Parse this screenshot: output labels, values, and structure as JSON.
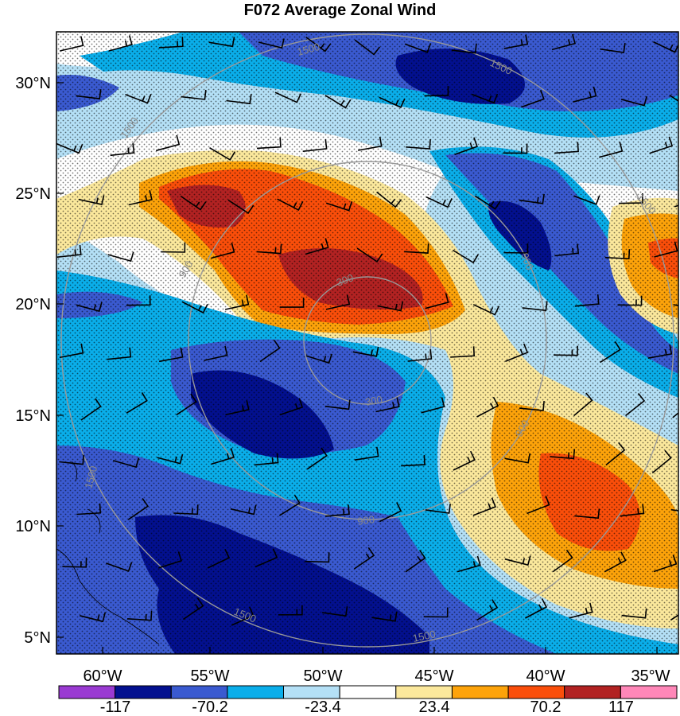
{
  "title": "F072 Average Zonal Wind",
  "lat_labels": [
    "30°N",
    "25°N",
    "20°N",
    "15°N",
    "10°N",
    "5°N"
  ],
  "lon_labels": [
    "60°W",
    "55°W",
    "50°W",
    "45°W",
    "40°W",
    "35°W"
  ],
  "range_rings": [
    "300",
    "300",
    "900",
    "900",
    "900",
    "900",
    "1500",
    "1500",
    "1500",
    "1500",
    "1500",
    "1500"
  ],
  "colorbar": {
    "colors": [
      "#9a3ad2",
      "#03108f",
      "#3a5ad0",
      "#0aaeea",
      "#b4e0f6",
      "#ffffff",
      "#fbe89c",
      "#fda30a",
      "#fa4e0a",
      "#b22222",
      "#ff87b8"
    ],
    "labels": [
      "-117",
      "-70.2",
      "-23.4",
      "23.4",
      "70.2",
      "117"
    ]
  }
}
